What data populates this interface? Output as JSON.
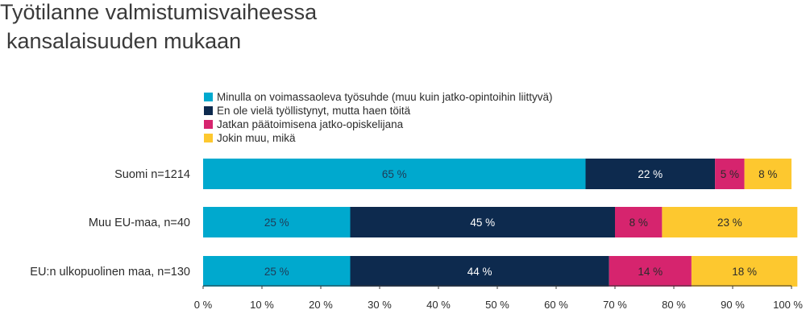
{
  "title_line1": "Työtilanne valmistumisvaiheessa",
  "title_line2": "kansalaisuuden mukaan",
  "chart_data": {
    "type": "bar",
    "orientation": "horizontal",
    "stacked": true,
    "categories": [
      "Suomi n=1214",
      "Muu EU-maa, n=40",
      "EU:n ulkopuolinen maa, n=130"
    ],
    "series": [
      {
        "name": "Minulla on voimassaoleva työsuhde (muu kuin jatko-opintoihin liittyvä)",
        "color": "#00a9ce",
        "label_color": "#1f3b57",
        "values": [
          65,
          25,
          25
        ]
      },
      {
        "name": "En ole vielä työllistynyt, mutta haen töitä",
        "color": "#0d2a4e",
        "label_color": "#ffffff",
        "values": [
          22,
          45,
          44
        ]
      },
      {
        "name": "Jatkan päätoimisena jatko-opiskelijana",
        "color": "#d6246e",
        "label_color": "#2b2b2b",
        "values": [
          5,
          8,
          14
        ]
      },
      {
        "name": "Jokin muu, mikä",
        "color": "#fdc82f",
        "label_color": "#2b2b2b",
        "values": [
          8,
          23,
          18
        ]
      }
    ],
    "data_labels": [
      [
        "65 %",
        "25 %",
        "25 %"
      ],
      [
        "22 %",
        "45 %",
        "44 %"
      ],
      [
        "5 %",
        "8 %",
        "14 %"
      ],
      [
        "8 %",
        "23 %",
        "18 %"
      ]
    ],
    "xlim": [
      0,
      100
    ],
    "xticks": [
      "0 %",
      "10 %",
      "20 %",
      "30 %",
      "40 %",
      "50 %",
      "60 %",
      "70 %",
      "80 %",
      "90 %",
      "100 %"
    ],
    "legend_position": "top",
    "grid": false
  }
}
